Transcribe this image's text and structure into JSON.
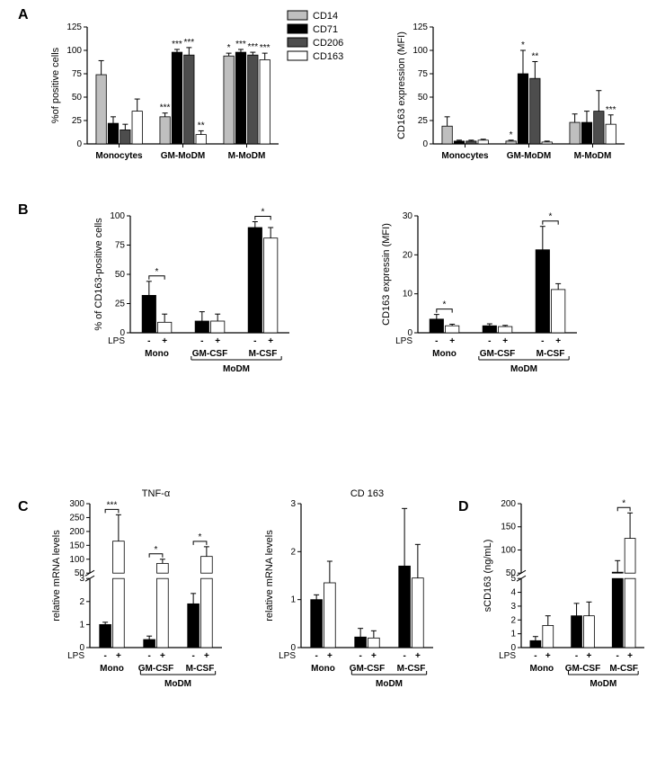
{
  "colors": {
    "light_gray": "#bfbfbf",
    "black": "#000000",
    "dark_gray": "#4d4d4d",
    "white": "#ffffff",
    "axis": "#000000",
    "bg": "#ffffff"
  },
  "panelA": {
    "label": "A",
    "left": {
      "ylabel": "%of positive cells",
      "ylim": [
        0,
        125
      ],
      "yticks": [
        0,
        25,
        50,
        75,
        100,
        125
      ],
      "groups": [
        "Monocytes",
        "GM-MoDM",
        "M-MoDM"
      ],
      "series": [
        {
          "name": "CD14",
          "color_key": "light_gray"
        },
        {
          "name": "CD71",
          "color_key": "black"
        },
        {
          "name": "CD206",
          "color_key": "dark_gray"
        },
        {
          "name": "CD163",
          "color_key": "white"
        }
      ],
      "values": [
        [
          74,
          22,
          15,
          35
        ],
        [
          29,
          98,
          95,
          10
        ],
        [
          94,
          98,
          95,
          90
        ]
      ],
      "errors": [
        [
          15,
          7,
          6,
          13
        ],
        [
          4,
          3,
          8,
          4
        ],
        [
          3,
          3,
          3,
          7
        ]
      ],
      "sig": [
        [
          "",
          "",
          "",
          ""
        ],
        [
          "***",
          "***",
          "***",
          "**"
        ],
        [
          "*",
          "***",
          "***",
          "***"
        ]
      ]
    },
    "right": {
      "ylabel": "CD163 expression (MFI)",
      "ylim": [
        0,
        125
      ],
      "yticks": [
        0,
        25,
        50,
        75,
        100,
        125
      ],
      "groups": [
        "Monocytes",
        "GM-MoDM",
        "M-MoDM"
      ],
      "values": [
        [
          19,
          3,
          3,
          4
        ],
        [
          3,
          75,
          70,
          2
        ],
        [
          23,
          23,
          35,
          21
        ]
      ],
      "errors": [
        [
          10,
          1,
          1,
          1
        ],
        [
          1,
          25,
          18,
          1
        ],
        [
          9,
          12,
          22,
          10
        ]
      ],
      "sig": [
        [
          "",
          "",
          "",
          ""
        ],
        [
          "*",
          "*",
          "**",
          ""
        ],
        [
          "",
          "",
          "",
          "***"
        ]
      ]
    },
    "legend": [
      "CD14",
      "CD71",
      "CD206",
      "CD163"
    ]
  },
  "panelB": {
    "label": "B",
    "left": {
      "ylabel": "% of CD163-positive cells",
      "ylim": [
        0,
        100
      ],
      "yticks": [
        0,
        25,
        50,
        75,
        100
      ],
      "groups": [
        "Mono",
        "GM-CSF",
        "M-CSF"
      ],
      "subgroup_label": "MoDM",
      "conditions": [
        "-",
        "+"
      ],
      "cond_label": "LPS",
      "values": [
        [
          32,
          9
        ],
        [
          10,
          10
        ],
        [
          90,
          81
        ]
      ],
      "errors": [
        [
          12,
          7
        ],
        [
          8,
          6
        ],
        [
          5,
          9
        ]
      ],
      "brackets": [
        {
          "group": 0,
          "sig": "*"
        },
        {
          "group": 2,
          "sig": "*"
        }
      ]
    },
    "right": {
      "ylabel": "CD163 expressin (MFI)",
      "ylim": [
        0,
        30
      ],
      "yticks": [
        0,
        10,
        20,
        30
      ],
      "groups": [
        "Mono",
        "GM-CSF",
        "M-CSF"
      ],
      "subgroup_label": "MoDM",
      "conditions": [
        "-",
        "+"
      ],
      "cond_label": "LPS",
      "values": [
        [
          3.5,
          1.8
        ],
        [
          1.8,
          1.6
        ],
        [
          21.3,
          11.1
        ]
      ],
      "errors": [
        [
          1.2,
          0.4
        ],
        [
          0.5,
          0.3
        ],
        [
          6.0,
          1.5
        ]
      ],
      "brackets": [
        {
          "group": 0,
          "sig": "*"
        },
        {
          "group": 2,
          "sig": "*"
        }
      ]
    }
  },
  "panelC": {
    "label": "C",
    "left": {
      "title": "TNF-α",
      "ylabel": "relative mRNA levels",
      "broken": true,
      "low": {
        "lim": [
          0,
          3
        ],
        "ticks": [
          0,
          1,
          2,
          3
        ]
      },
      "high": {
        "lim": [
          50,
          300
        ],
        "ticks": [
          50,
          100,
          150,
          200,
          250,
          300
        ]
      },
      "groups": [
        "Mono",
        "GM-CSF",
        "M-CSF"
      ],
      "subgroup_label": "MoDM",
      "conditions": [
        "-",
        "+"
      ],
      "cond_label": "LPS",
      "values": [
        [
          1.0,
          165
        ],
        [
          0.35,
          85
        ],
        [
          1.9,
          110
        ]
      ],
      "errors": [
        [
          0.1,
          95
        ],
        [
          0.15,
          15
        ],
        [
          0.45,
          35
        ]
      ],
      "brackets": [
        {
          "group": 0,
          "sig": "***"
        },
        {
          "group": 1,
          "sig": "*"
        },
        {
          "group": 2,
          "sig": "*"
        }
      ]
    },
    "right": {
      "title": "CD 163",
      "ylabel": "relative mRNA levels",
      "ylim": [
        0,
        3
      ],
      "yticks": [
        0,
        1,
        2,
        3
      ],
      "groups": [
        "Mono",
        "GM-CSF",
        "M-CSF"
      ],
      "subgroup_label": "MoDM",
      "conditions": [
        "-",
        "+"
      ],
      "cond_label": "LPS",
      "values": [
        [
          1.0,
          1.35
        ],
        [
          0.22,
          0.2
        ],
        [
          1.7,
          1.45
        ]
      ],
      "errors": [
        [
          0.1,
          0.45
        ],
        [
          0.18,
          0.15
        ],
        [
          1.2,
          0.7
        ]
      ]
    }
  },
  "panelD": {
    "label": "D",
    "chart": {
      "ylabel": "sCD163 (ng/mL)",
      "broken": true,
      "low": {
        "lim": [
          0,
          5
        ],
        "ticks": [
          0,
          1,
          2,
          3,
          4,
          5
        ]
      },
      "high": {
        "lim": [
          50,
          200
        ],
        "ticks": [
          50,
          100,
          150,
          200
        ]
      },
      "groups": [
        "Mono",
        "GM-CSF",
        "M-CSF"
      ],
      "subgroup_label": "MoDM",
      "conditions": [
        "-",
        "+"
      ],
      "cond_label": "LPS",
      "values": [
        [
          0.5,
          1.6
        ],
        [
          2.3,
          2.3
        ],
        [
          52,
          125
        ]
      ],
      "errors": [
        [
          0.3,
          0.7
        ],
        [
          0.9,
          1.0
        ],
        [
          25,
          55
        ]
      ],
      "brackets": [
        {
          "group": 2,
          "sig": "*"
        }
      ]
    }
  }
}
